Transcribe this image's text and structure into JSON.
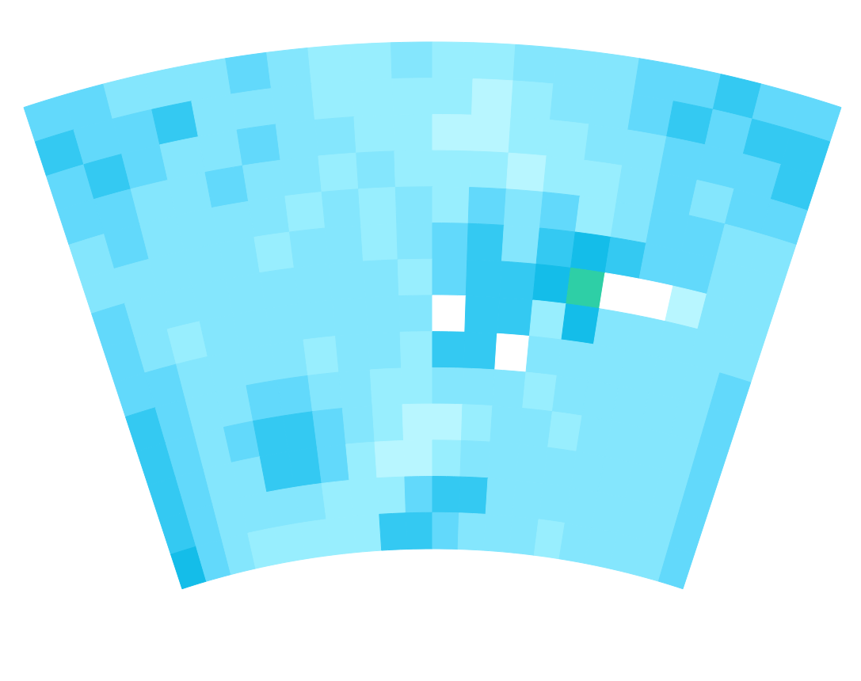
{
  "chart_data": {
    "type": "filled_contour",
    "colors": [
      "#ffffff",
      "#b8f6ff",
      "#98eefe",
      "#84e6fd",
      "#62d9fb",
      "#34c9f2",
      "#14bde9",
      "#2ecfa6"
    ],
    "values": [
      [
        4,
        4,
        3,
        3,
        3,
        4,
        3,
        2,
        2,
        3,
        2,
        2,
        3,
        3,
        3,
        4,
        4,
        5,
        4,
        4
      ],
      [
        5,
        4,
        4,
        5,
        3,
        3,
        3,
        2,
        2,
        2,
        2,
        1,
        2,
        3,
        3,
        4,
        5,
        4,
        5,
        5
      ],
      [
        4,
        5,
        4,
        3,
        3,
        4,
        3,
        3,
        2,
        2,
        1,
        1,
        2,
        2,
        3,
        3,
        4,
        4,
        4,
        5
      ],
      [
        4,
        4,
        3,
        3,
        4,
        3,
        3,
        2,
        3,
        2,
        2,
        2,
        1,
        2,
        2,
        3,
        4,
        3,
        4,
        4
      ],
      [
        3,
        4,
        3,
        3,
        3,
        3,
        2,
        3,
        2,
        3,
        2,
        4,
        3,
        4,
        2,
        3,
        4,
        4,
        3,
        3
      ],
      [
        3,
        3,
        3,
        3,
        3,
        2,
        3,
        3,
        2,
        3,
        4,
        5,
        3,
        5,
        6,
        5,
        4,
        4,
        3,
        3
      ],
      [
        4,
        3,
        3,
        3,
        3,
        3,
        3,
        3,
        3,
        2,
        4,
        5,
        5,
        6,
        7,
        0,
        0,
        1,
        3,
        3
      ],
      [
        4,
        3,
        2,
        3,
        3,
        3,
        3,
        3,
        3,
        3,
        0,
        5,
        5,
        2,
        6,
        3,
        3,
        3,
        3,
        3
      ],
      [
        4,
        4,
        3,
        3,
        3,
        3,
        2,
        3,
        3,
        2,
        5,
        5,
        0,
        3,
        3,
        3,
        3,
        3,
        3,
        4
      ],
      [
        5,
        4,
        3,
        3,
        4,
        4,
        3,
        3,
        2,
        2,
        3,
        3,
        3,
        2,
        3,
        3,
        3,
        3,
        3,
        4
      ],
      [
        5,
        4,
        3,
        4,
        5,
        5,
        4,
        3,
        2,
        1,
        1,
        2,
        3,
        3,
        2,
        3,
        3,
        3,
        3,
        4
      ],
      [
        5,
        4,
        3,
        3,
        5,
        5,
        4,
        2,
        1,
        1,
        2,
        3,
        3,
        3,
        3,
        3,
        3,
        3,
        3,
        4
      ],
      [
        5,
        4,
        3,
        3,
        3,
        3,
        2,
        2,
        2,
        4,
        5,
        5,
        3,
        3,
        3,
        3,
        3,
        3,
        3,
        4
      ],
      [
        6,
        4,
        3,
        2,
        2,
        2,
        2,
        2,
        5,
        5,
        4,
        3,
        3,
        3,
        2,
        3,
        3,
        3,
        3,
        4
      ]
    ],
    "tick_labels": false,
    "grid": false
  }
}
